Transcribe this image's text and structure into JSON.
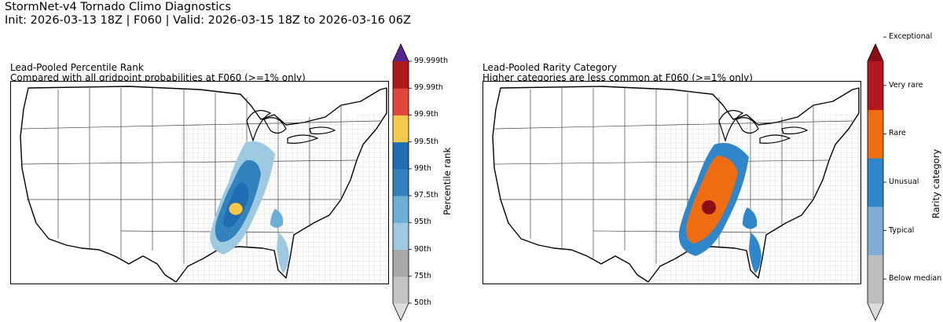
{
  "header": {
    "title": "StormNet-v4 Tornado Climo Diagnostics",
    "subtitle": "Init: 2026-03-13 18Z | F060 | Valid: 2026-03-15 18Z to 2026-03-16 06Z"
  },
  "panels": [
    {
      "title": "Lead-Pooled Percentile Rank",
      "subtitle": "Compared with all gridpoint probabilities at F060 (>=1% only)",
      "colorbar_label": "Percentile rank",
      "colorbar_ticks": [
        "50th",
        "75th",
        "90th",
        "95th",
        "97.5th",
        "99th",
        "99.5th",
        "99.9th",
        "99.99th",
        "99.999th"
      ],
      "colorbar_colors": [
        "#dedede",
        "#c4c4c4",
        "#a8a8a8",
        "#9ecae1",
        "#6baed6",
        "#3182bd",
        "#1f6eb3",
        "#f2c94c",
        "#e0463a",
        "#b11a1a",
        "#54278f"
      ]
    },
    {
      "title": "Lead-Pooled Rarity Category",
      "subtitle": "Higher categories are less common at F060 (>=1% only)",
      "colorbar_label": "Rarity category",
      "colorbar_ticks": [
        "Below median",
        "Typical",
        "Unusual",
        "Rare",
        "Very rare",
        "Exceptional"
      ],
      "colorbar_colors": [
        "#dcdcdc",
        "#bdbdbd",
        "#7fadd6",
        "#2f86c8",
        "#ef6c12",
        "#b2161e",
        "#8a0f14"
      ]
    }
  ]
}
